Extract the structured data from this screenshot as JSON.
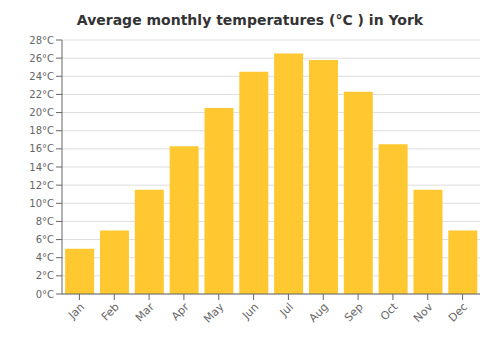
{
  "chart_data": {
    "type": "bar",
    "title": "Average monthly temperatures (°C ) in York",
    "categories": [
      "Jan",
      "Feb",
      "Mar",
      "Apr",
      "May",
      "Jun",
      "Jul",
      "Aug",
      "Sep",
      "Oct",
      "Nov",
      "Dec"
    ],
    "values": [
      5.0,
      7.0,
      11.5,
      16.3,
      20.5,
      24.5,
      26.5,
      25.8,
      22.3,
      16.5,
      11.5,
      7.0
    ],
    "color": "#FFC830",
    "ylim": [
      0,
      28
    ],
    "yticks": [
      {
        "value": 0,
        "label": "0°C"
      },
      {
        "value": 2,
        "label": "2°C"
      },
      {
        "value": 4,
        "label": "4°C"
      },
      {
        "value": 6,
        "label": "6°C"
      },
      {
        "value": 8,
        "label": "8°C"
      },
      {
        "value": 10,
        "label": "10°C"
      },
      {
        "value": 12,
        "label": "12°C"
      },
      {
        "value": 14,
        "label": "14°C"
      },
      {
        "value": 16,
        "label": "16°C"
      },
      {
        "value": 18,
        "label": "18°C"
      },
      {
        "value": 20,
        "label": "20°C"
      },
      {
        "value": 22,
        "label": "22°C"
      },
      {
        "value": 24,
        "label": "24°C"
      },
      {
        "value": 26,
        "label": "26°C"
      },
      {
        "value": 28,
        "label": "28°C"
      }
    ],
    "grid": true
  }
}
